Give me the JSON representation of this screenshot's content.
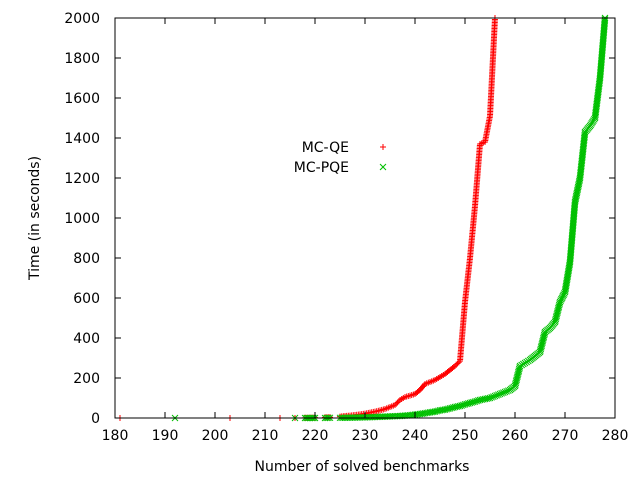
{
  "chart_data": {
    "type": "scatter",
    "xlabel": "Number of solved benchmarks",
    "ylabel": "Time (in seconds)",
    "xlim": [
      180,
      280
    ],
    "ylim": [
      0,
      2000
    ],
    "x_ticks": [
      180,
      190,
      200,
      210,
      220,
      230,
      240,
      250,
      260,
      270,
      280
    ],
    "y_ticks": [
      0,
      200,
      400,
      600,
      800,
      1000,
      1200,
      1400,
      1600,
      1800,
      2000
    ],
    "grid": false,
    "legend_position": "center",
    "series": [
      {
        "name": "MC-QE",
        "color": "#ff0000",
        "marker": "plus",
        "points": [
          [
            181,
            0
          ],
          [
            203,
            0
          ],
          [
            213,
            0
          ],
          [
            216,
            0
          ],
          [
            218,
            1
          ],
          [
            219,
            1
          ],
          [
            220,
            2
          ],
          [
            222,
            3
          ],
          [
            223,
            4
          ],
          [
            225,
            7
          ],
          [
            226,
            10
          ],
          [
            227,
            12
          ],
          [
            228,
            15
          ],
          [
            229,
            18
          ],
          [
            230,
            22
          ],
          [
            231,
            27
          ],
          [
            232,
            32
          ],
          [
            233,
            38
          ],
          [
            234,
            45
          ],
          [
            235,
            55
          ],
          [
            236,
            65
          ],
          [
            237,
            90
          ],
          [
            238,
            105
          ],
          [
            239,
            112
          ],
          [
            240,
            120
          ],
          [
            241,
            140
          ],
          [
            242,
            170
          ],
          [
            243,
            180
          ],
          [
            244,
            190
          ],
          [
            245,
            205
          ],
          [
            246,
            220
          ],
          [
            247,
            240
          ],
          [
            248,
            260
          ],
          [
            249,
            285
          ],
          [
            250,
            580
          ],
          [
            251,
            800
          ],
          [
            252,
            1060
          ],
          [
            253,
            1370
          ],
          [
            254,
            1380
          ],
          [
            255,
            1510
          ],
          [
            256,
            2000
          ]
        ]
      },
      {
        "name": "MC-PQE",
        "color": "#00c000",
        "marker": "cross",
        "points": [
          [
            192,
            0
          ],
          [
            216,
            0
          ],
          [
            218,
            0
          ],
          [
            219,
            0
          ],
          [
            220,
            0
          ],
          [
            222,
            0
          ],
          [
            223,
            1
          ],
          [
            225,
            1
          ],
          [
            226,
            1
          ],
          [
            227,
            2
          ],
          [
            228,
            2
          ],
          [
            229,
            3
          ],
          [
            230,
            3
          ],
          [
            231,
            4
          ],
          [
            232,
            5
          ],
          [
            233,
            6
          ],
          [
            234,
            7
          ],
          [
            235,
            8
          ],
          [
            236,
            9
          ],
          [
            237,
            10
          ],
          [
            238,
            12
          ],
          [
            239,
            14
          ],
          [
            240,
            17
          ],
          [
            241,
            20
          ],
          [
            242,
            24
          ],
          [
            243,
            28
          ],
          [
            244,
            32
          ],
          [
            245,
            38
          ],
          [
            246,
            42
          ],
          [
            247,
            48
          ],
          [
            248,
            55
          ],
          [
            249,
            60
          ],
          [
            250,
            68
          ],
          [
            251,
            75
          ],
          [
            252,
            82
          ],
          [
            253,
            90
          ],
          [
            254,
            95
          ],
          [
            255,
            100
          ],
          [
            256,
            110
          ],
          [
            257,
            120
          ],
          [
            258,
            130
          ],
          [
            259,
            140
          ],
          [
            260,
            160
          ],
          [
            261,
            260
          ],
          [
            262,
            275
          ],
          [
            263,
            290
          ],
          [
            264,
            310
          ],
          [
            265,
            330
          ],
          [
            266,
            430
          ],
          [
            267,
            450
          ],
          [
            268,
            480
          ],
          [
            269,
            580
          ],
          [
            270,
            630
          ],
          [
            271,
            780
          ],
          [
            272,
            1080
          ],
          [
            273,
            1200
          ],
          [
            274,
            1430
          ],
          [
            275,
            1460
          ],
          [
            276,
            1500
          ],
          [
            277,
            1700
          ],
          [
            278,
            2000
          ]
        ]
      }
    ]
  }
}
